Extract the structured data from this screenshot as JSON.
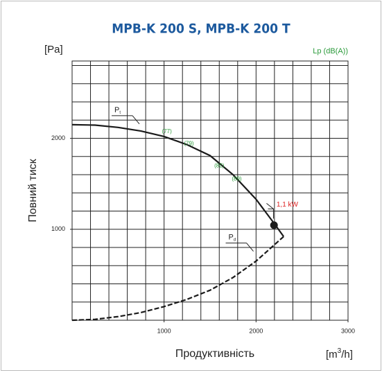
{
  "chart_data": {
    "type": "line",
    "title": "MPB-K 200 S, MPB-K 200 T",
    "y_unit": "[Pa]",
    "ylabel": "Повний тиск",
    "xlabel": "Продуктивність",
    "x_unit": {
      "pre": "[m",
      "sup": "3",
      "post": "/h]"
    },
    "y2_unit": "Lp (dB(A))",
    "xlim": [
      0,
      3000
    ],
    "ylim": [
      0,
      2850
    ],
    "xticks": [
      1000,
      2000,
      3000
    ],
    "yticks": [
      1000,
      2000
    ],
    "xgrid": [
      200,
      400,
      600,
      800,
      1000,
      1200,
      1400,
      1600,
      1800,
      2000,
      2200,
      2400,
      2600,
      2800
    ],
    "ygrid": [
      200,
      400,
      600,
      800,
      1000,
      1200,
      1400,
      1600,
      1800,
      2000,
      2200,
      2400,
      2600,
      2800
    ],
    "grid": true,
    "series": [
      {
        "name": "P",
        "sub": "t",
        "color": "#1a1a1a",
        "dashed": false,
        "x": [
          0,
          250,
          500,
          750,
          1000,
          1250,
          1500,
          1750,
          2000,
          2200,
          2300
        ],
        "values": [
          2150,
          2145,
          2120,
          2080,
          2020,
          1930,
          1810,
          1600,
          1330,
          1060,
          920
        ]
      },
      {
        "name": "P",
        "sub": "d",
        "color": "#1a1a1a",
        "dashed": true,
        "x": [
          0,
          250,
          500,
          750,
          1000,
          1250,
          1500,
          1750,
          2000,
          2200,
          2300
        ],
        "values": [
          0,
          10,
          40,
          85,
          150,
          230,
          330,
          470,
          650,
          830,
          920
        ]
      }
    ],
    "series_label_pos": [
      {
        "x": 460,
        "y": 2310
      },
      {
        "x": 1700,
        "y": 910
      }
    ],
    "noise_labels": [
      {
        "text": "(77)",
        "x": 1030,
        "y": 2075
      },
      {
        "text": "(79)",
        "x": 1270,
        "y": 1940
      },
      {
        "text": "(82)",
        "x": 1600,
        "y": 1695
      },
      {
        "text": "(89)",
        "x": 1790,
        "y": 1550
      }
    ],
    "power_label": {
      "text": "1,1 kW",
      "x": 2340,
      "y": 1270
    },
    "operating_point": {
      "x": 2195,
      "y": 1045
    }
  }
}
